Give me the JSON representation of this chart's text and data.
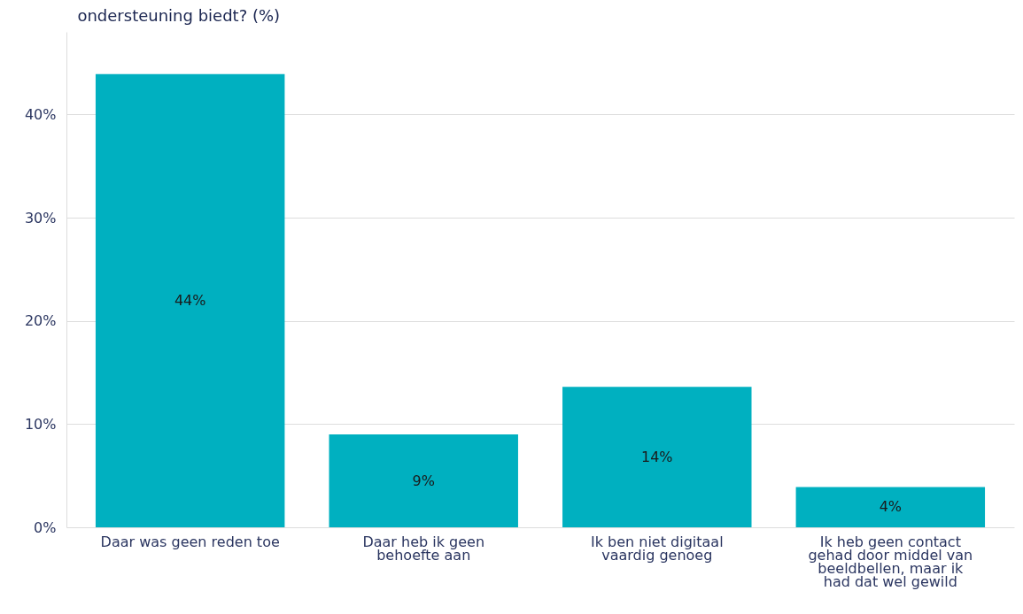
{
  "chart_data": {
    "type": "bar",
    "title": "ondersteuning biedt? (%)",
    "categories": [
      "Daar was geen reden toe",
      "Daar heb ik geen behoefte aan",
      "Ik ben niet digitaal vaardig genoeg",
      "Ik heb geen contact gehad door middel van beeldbellen, maar ik had dat wel gewild"
    ],
    "values": [
      43.9,
      9.0,
      13.6,
      3.9
    ],
    "value_labels": [
      "44%",
      "9%",
      "14%",
      "4%"
    ],
    "color": "#00b0c0",
    "ylim": [
      0,
      48
    ],
    "yticks": [
      {
        "value": 0,
        "label": "0%"
      },
      {
        "value": 10,
        "label": "10%"
      },
      {
        "value": 20,
        "label": "20%"
      },
      {
        "value": 30,
        "label": "30%"
      },
      {
        "value": 40,
        "label": "40%"
      }
    ],
    "grid": "y"
  }
}
